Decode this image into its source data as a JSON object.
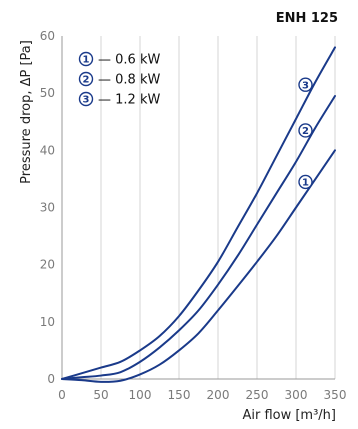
{
  "chart_data": {
    "type": "line",
    "title": "ENH 125",
    "xlabel": "Air flow [m³/h]",
    "ylabel": "Pressure drop, ΔP [Pa]",
    "xlim": [
      0,
      350
    ],
    "ylim": [
      0,
      60
    ],
    "xticks": [
      "0",
      "50",
      "100",
      "150",
      "200",
      "250",
      "300",
      "350"
    ],
    "yticks": [
      "0",
      "10",
      "20",
      "30",
      "40",
      "50",
      "60"
    ],
    "grid": "vertical",
    "legend_position": "top-left",
    "line_color": "#1a3a8a",
    "series": [
      {
        "name": "1",
        "label": "— 0.6 kW",
        "marker": "1",
        "x": [
          0,
          25,
          50,
          75,
          100,
          125,
          150,
          175,
          200,
          225,
          250,
          275,
          300,
          325,
          350
        ],
        "y": [
          0,
          -0.2,
          -0.5,
          -0.3,
          0.8,
          2.5,
          5.0,
          8.0,
          12.0,
          16.2,
          20.5,
          25.0,
          30.0,
          35.0,
          40.0
        ]
      },
      {
        "name": "2",
        "label": "— 0.8 kW",
        "marker": "2",
        "x": [
          0,
          25,
          50,
          75,
          100,
          125,
          150,
          175,
          200,
          225,
          250,
          275,
          300,
          325,
          350
        ],
        "y": [
          0,
          0.3,
          0.6,
          1.2,
          3.0,
          5.5,
          8.5,
          12.0,
          16.5,
          21.5,
          27.0,
          32.5,
          38.0,
          44.0,
          49.5
        ]
      },
      {
        "name": "3",
        "label": "— 1.2 kW",
        "marker": "3",
        "x": [
          0,
          25,
          50,
          75,
          100,
          125,
          150,
          175,
          200,
          225,
          250,
          275,
          300,
          325,
          350
        ],
        "y": [
          0,
          1.0,
          2.0,
          3.0,
          5.0,
          7.5,
          11.0,
          15.5,
          20.5,
          26.5,
          32.5,
          39.0,
          45.5,
          52.0,
          58.0
        ]
      }
    ]
  }
}
